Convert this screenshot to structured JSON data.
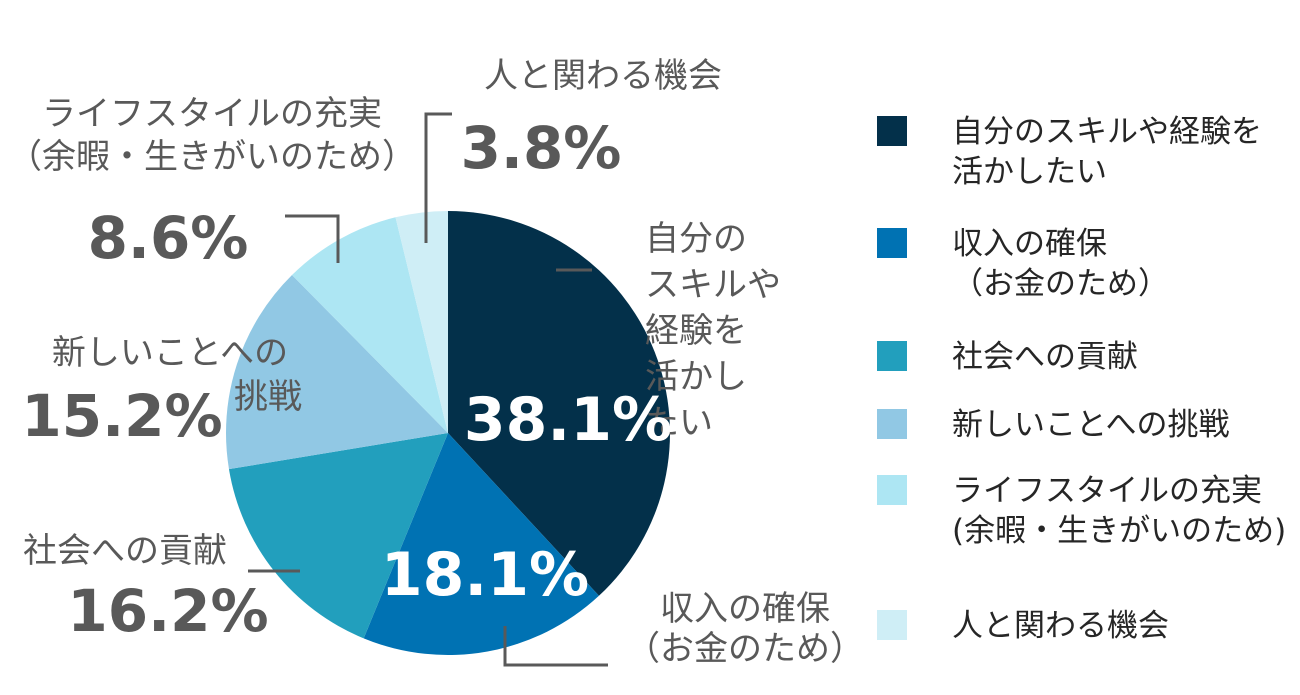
{
  "chart_data": {
    "type": "pie",
    "series": [
      {
        "name": "自分のスキルや経験を活かしたい",
        "value": 38.1,
        "color": "#03304a",
        "label_lines": [
          "自分の",
          "スキルや",
          "経験を",
          "活かし",
          "たい"
        ],
        "pct_label": "38.1%"
      },
      {
        "name": "収入の確保（お金のため）",
        "value": 18.1,
        "color": "#0072b3",
        "label_lines": [
          "収入の確保",
          "（お金のため）"
        ],
        "pct_label": "18.1%"
      },
      {
        "name": "社会への貢献",
        "value": 16.2,
        "color": "#229fbd",
        "label_lines": [
          "社会への貢献"
        ],
        "pct_label": "16.2%"
      },
      {
        "name": "新しいことへの挑戦",
        "value": 15.2,
        "color": "#91c8e4",
        "label_lines": [
          "新しいことへの",
          "挑戦"
        ],
        "pct_label": "15.2%"
      },
      {
        "name": "ライフスタイルの充実（余暇・生きがいのため）",
        "value": 8.6,
        "color": "#ade6f3",
        "label_lines": [
          "ライフスタイルの充実",
          "（余暇・生きがいのため）"
        ],
        "pct_label": "8.6%"
      },
      {
        "name": "人と関わる機会",
        "value": 3.8,
        "color": "#cfeef6",
        "label_lines": [
          "人と関わる機会"
        ],
        "pct_label": "3.8%"
      }
    ],
    "legend": [
      {
        "lines": [
          "自分のスキルや経験を",
          "活かしたい"
        ],
        "color": "#03304a"
      },
      {
        "lines": [
          "収入の確保",
          "（お金のため）"
        ],
        "color": "#0072b3"
      },
      {
        "lines": [
          "社会への貢献"
        ],
        "color": "#229fbd"
      },
      {
        "lines": [
          "新しいことへの挑戦"
        ],
        "color": "#91c8e4"
      },
      {
        "lines": [
          "ライフスタイルの充実",
          "(余暇・生きがいのため)"
        ],
        "color": "#ade6f3"
      },
      {
        "lines": [
          "人と関わる機会"
        ],
        "color": "#cfeef6"
      }
    ],
    "legend_position": "right"
  }
}
